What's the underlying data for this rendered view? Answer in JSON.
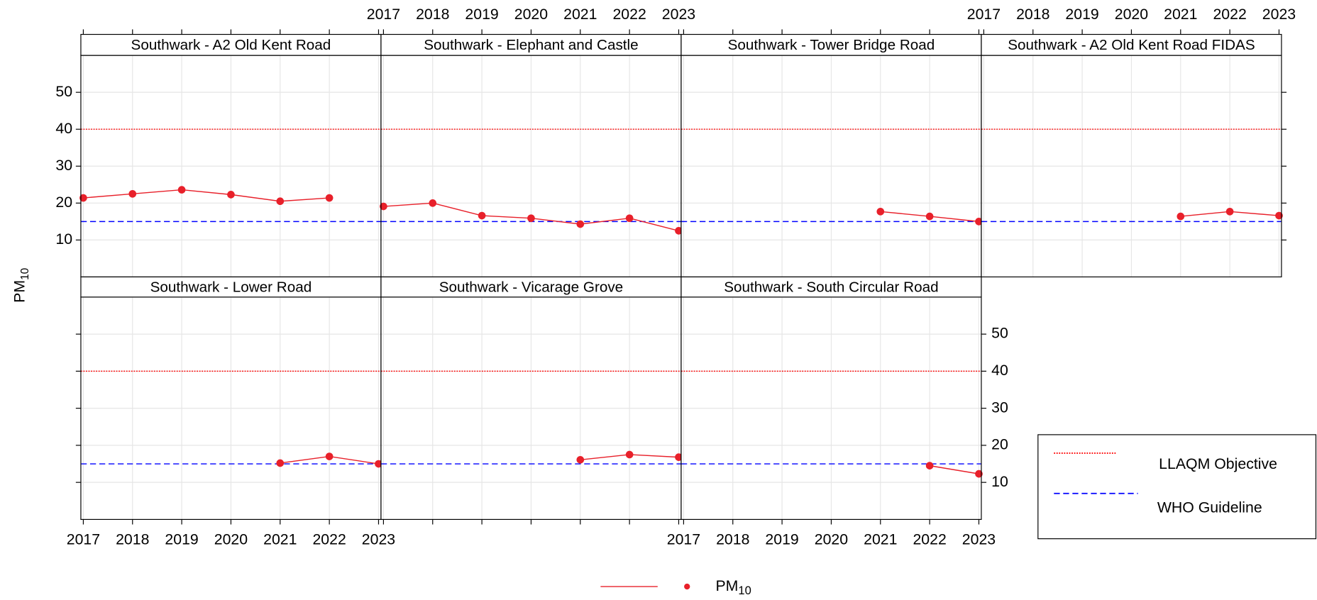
{
  "chart_data": {
    "type": "line",
    "ylabel": {
      "base": "PM",
      "sub": "10"
    },
    "x": [
      2017,
      2018,
      2019,
      2020,
      2021,
      2022,
      2023
    ],
    "xlim": [
      2016.95,
      2023.05
    ],
    "xticks": [
      2017,
      2018,
      2019,
      2020,
      2021,
      2022,
      2023
    ],
    "ylim": [
      0,
      60
    ],
    "yticks": [
      10,
      20,
      30,
      40,
      50
    ],
    "grid": true,
    "series_name": {
      "base": "PM",
      "sub": "10"
    },
    "color": "#e8202a",
    "panels": [
      {
        "title": "Southwark - A2 Old Kent Road",
        "values": [
          21.4,
          22.5,
          23.6,
          22.3,
          20.5,
          21.4,
          null
        ]
      },
      {
        "title": "Southwark - Elephant and Castle",
        "values": [
          19.1,
          20.0,
          16.6,
          15.9,
          14.3,
          15.9,
          12.5
        ]
      },
      {
        "title": "Southwark - Tower Bridge Road",
        "values": [
          null,
          null,
          null,
          null,
          17.7,
          16.4,
          15.0
        ]
      },
      {
        "title": "Southwark - A2 Old Kent Road FIDAS",
        "values": [
          null,
          null,
          null,
          null,
          16.4,
          17.7,
          16.6
        ]
      },
      {
        "title": "Southwark - Lower Road",
        "values": [
          null,
          null,
          null,
          null,
          15.2,
          17.0,
          15.0
        ]
      },
      {
        "title": "Southwark - Vicarage Grove",
        "values": [
          null,
          null,
          null,
          null,
          16.1,
          17.5,
          16.8
        ]
      },
      {
        "title": "Southwark - South Circular Road",
        "values": [
          null,
          null,
          null,
          null,
          null,
          14.5,
          12.3
        ]
      }
    ],
    "reference_lines": [
      {
        "name": "LLAQM Objective",
        "value": 40,
        "color": "#ff0000",
        "style": "dotted"
      },
      {
        "name": "WHO Guideline",
        "value": 15,
        "color": "#0000ff",
        "style": "dashed"
      }
    ],
    "legend": "bottom-right"
  }
}
